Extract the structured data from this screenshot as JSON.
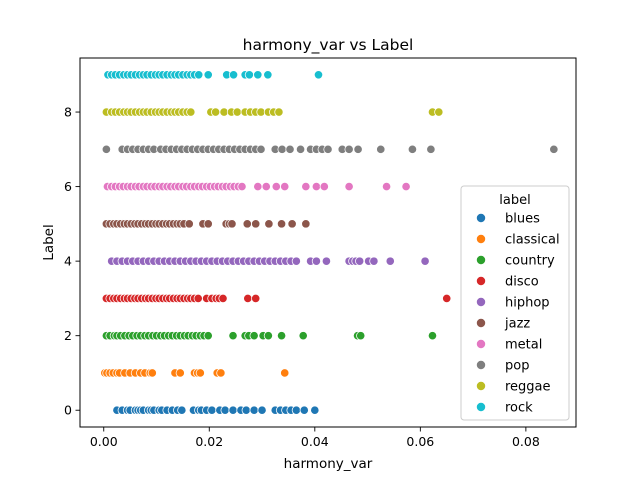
{
  "chart_data": {
    "type": "scatter",
    "title": "harmony_var vs Label",
    "xlabel": "harmony_var",
    "ylabel": "Label",
    "xlim": [
      -0.0045,
      0.0895
    ],
    "ylim": [
      -0.45,
      9.45
    ],
    "xticks": [
      0.0,
      0.02,
      0.04,
      0.06,
      0.08
    ],
    "xtick_labels": [
      "0.00",
      "0.02",
      "0.04",
      "0.06",
      "0.08"
    ],
    "yticks": [
      0,
      2,
      4,
      6,
      8
    ],
    "ytick_labels": [
      "0",
      "2",
      "4",
      "6",
      "8"
    ],
    "grid": false,
    "legend": {
      "title": "label",
      "placement": "center-right"
    },
    "series": [
      {
        "name": "blues",
        "y": 0,
        "color": "#1f77b4",
        "x": [
          0.0025,
          0.0035,
          0.0045,
          0.005,
          0.006,
          0.0065,
          0.007,
          0.0075,
          0.0085,
          0.009,
          0.0095,
          0.0105,
          0.011,
          0.012,
          0.013,
          0.014,
          0.0148,
          0.017,
          0.018,
          0.0185,
          0.0195,
          0.0205,
          0.022,
          0.023,
          0.0245,
          0.026,
          0.027,
          0.0285,
          0.03,
          0.0325,
          0.0335,
          0.0345,
          0.0355,
          0.0365,
          0.038,
          0.04
        ]
      },
      {
        "name": "classical",
        "y": 1,
        "color": "#ff7f0e",
        "x": [
          0.0002,
          0.0006,
          0.0012,
          0.0018,
          0.0025,
          0.003,
          0.004,
          0.005,
          0.006,
          0.007,
          0.0078,
          0.0088,
          0.0092,
          0.0135,
          0.0145,
          0.0172,
          0.0178,
          0.0183,
          0.0215,
          0.0222,
          0.0343
        ]
      },
      {
        "name": "country",
        "y": 2,
        "color": "#2ca02c",
        "x": [
          0.0005,
          0.0012,
          0.002,
          0.0025,
          0.0032,
          0.004,
          0.0048,
          0.0055,
          0.0063,
          0.007,
          0.0078,
          0.0085,
          0.0093,
          0.01,
          0.0108,
          0.0115,
          0.0123,
          0.013,
          0.0138,
          0.0145,
          0.0153,
          0.016,
          0.0168,
          0.0175,
          0.0183,
          0.019,
          0.0198,
          0.0245,
          0.0268,
          0.0275,
          0.0285,
          0.0302,
          0.0312,
          0.0337,
          0.0378,
          0.0481,
          0.0487,
          0.0623
        ]
      },
      {
        "name": "disco",
        "y": 3,
        "color": "#d62728",
        "x": [
          0.0005,
          0.0012,
          0.0019,
          0.0025,
          0.0032,
          0.0039,
          0.0045,
          0.0052,
          0.0059,
          0.0065,
          0.0072,
          0.0079,
          0.0085,
          0.0092,
          0.0099,
          0.0105,
          0.0112,
          0.0119,
          0.0125,
          0.0132,
          0.0139,
          0.0145,
          0.0152,
          0.0159,
          0.0165,
          0.0172,
          0.0179,
          0.0195,
          0.0205,
          0.0213,
          0.0219,
          0.0226,
          0.0273,
          0.0288,
          0.065
        ]
      },
      {
        "name": "hiphop",
        "y": 4,
        "color": "#9467bd",
        "x": [
          0.0015,
          0.0025,
          0.0035,
          0.0045,
          0.0055,
          0.0065,
          0.0075,
          0.0085,
          0.0095,
          0.0105,
          0.0115,
          0.0125,
          0.0135,
          0.0145,
          0.0155,
          0.0165,
          0.0175,
          0.0185,
          0.0195,
          0.0205,
          0.0215,
          0.0225,
          0.0235,
          0.0245,
          0.0255,
          0.0265,
          0.0275,
          0.0285,
          0.0295,
          0.0305,
          0.0315,
          0.0325,
          0.0335,
          0.0345,
          0.0355,
          0.0365,
          0.0392,
          0.0403,
          0.0422,
          0.0465,
          0.0472,
          0.0478,
          0.0485,
          0.0502,
          0.0512,
          0.0543,
          0.0609
        ]
      },
      {
        "name": "jazz",
        "y": 5,
        "color": "#8c564b",
        "x": [
          0.0005,
          0.0012,
          0.0019,
          0.0025,
          0.0032,
          0.0039,
          0.0045,
          0.0052,
          0.0059,
          0.0065,
          0.0072,
          0.0079,
          0.0085,
          0.0092,
          0.0099,
          0.0105,
          0.0112,
          0.0119,
          0.0125,
          0.0132,
          0.0139,
          0.0145,
          0.0152,
          0.0162,
          0.0188,
          0.0198,
          0.0232,
          0.0238,
          0.0243,
          0.0272,
          0.0288,
          0.0313,
          0.0337,
          0.0357,
          0.0383
        ]
      },
      {
        "name": "metal",
        "y": 6,
        "color": "#e377c2",
        "x": [
          0.0007,
          0.0015,
          0.0022,
          0.003,
          0.0037,
          0.0045,
          0.0052,
          0.006,
          0.0067,
          0.0075,
          0.0082,
          0.009,
          0.0097,
          0.0105,
          0.0112,
          0.012,
          0.0127,
          0.0135,
          0.0142,
          0.015,
          0.0157,
          0.0165,
          0.0172,
          0.018,
          0.0187,
          0.0195,
          0.0202,
          0.021,
          0.0217,
          0.0225,
          0.0232,
          0.024,
          0.0247,
          0.0255,
          0.0262,
          0.0292,
          0.0308,
          0.0327,
          0.0343,
          0.0383,
          0.0403,
          0.0418,
          0.0465,
          0.0536,
          0.0573
        ]
      },
      {
        "name": "pop",
        "y": 7,
        "color": "#7f7f7f",
        "x": [
          0.0005,
          0.0035,
          0.0045,
          0.0055,
          0.0065,
          0.0075,
          0.0085,
          0.0095,
          0.0108,
          0.0118,
          0.0128,
          0.0138,
          0.0148,
          0.0158,
          0.0168,
          0.0178,
          0.0188,
          0.0198,
          0.0208,
          0.0218,
          0.0228,
          0.0238,
          0.0248,
          0.0258,
          0.0268,
          0.0278,
          0.0288,
          0.0298,
          0.0325,
          0.0338,
          0.0353,
          0.0373,
          0.0392,
          0.0403,
          0.0414,
          0.0425,
          0.0452,
          0.0465,
          0.0482,
          0.0525,
          0.0585,
          0.062,
          0.0853
        ]
      },
      {
        "name": "reggae",
        "y": 8,
        "color": "#bcbd22",
        "x": [
          0.0005,
          0.0015,
          0.0022,
          0.003,
          0.0038,
          0.0045,
          0.0052,
          0.006,
          0.0068,
          0.0075,
          0.0082,
          0.009,
          0.0098,
          0.0105,
          0.0112,
          0.012,
          0.0128,
          0.0135,
          0.0142,
          0.015,
          0.0158,
          0.0165,
          0.0203,
          0.0212,
          0.0228,
          0.0242,
          0.0253,
          0.0268,
          0.0278,
          0.0288,
          0.0298,
          0.0312,
          0.0322,
          0.0332,
          0.0623,
          0.0635
        ]
      },
      {
        "name": "rock",
        "y": 9,
        "color": "#17becf",
        "x": [
          0.0008,
          0.0015,
          0.0022,
          0.003,
          0.0038,
          0.0045,
          0.0052,
          0.006,
          0.0068,
          0.0075,
          0.0082,
          0.009,
          0.0098,
          0.0105,
          0.0112,
          0.012,
          0.0128,
          0.0135,
          0.0142,
          0.015,
          0.0158,
          0.0165,
          0.0172,
          0.018,
          0.0198,
          0.0233,
          0.0246,
          0.0268,
          0.0276,
          0.0292,
          0.0311,
          0.0407
        ]
      }
    ]
  }
}
